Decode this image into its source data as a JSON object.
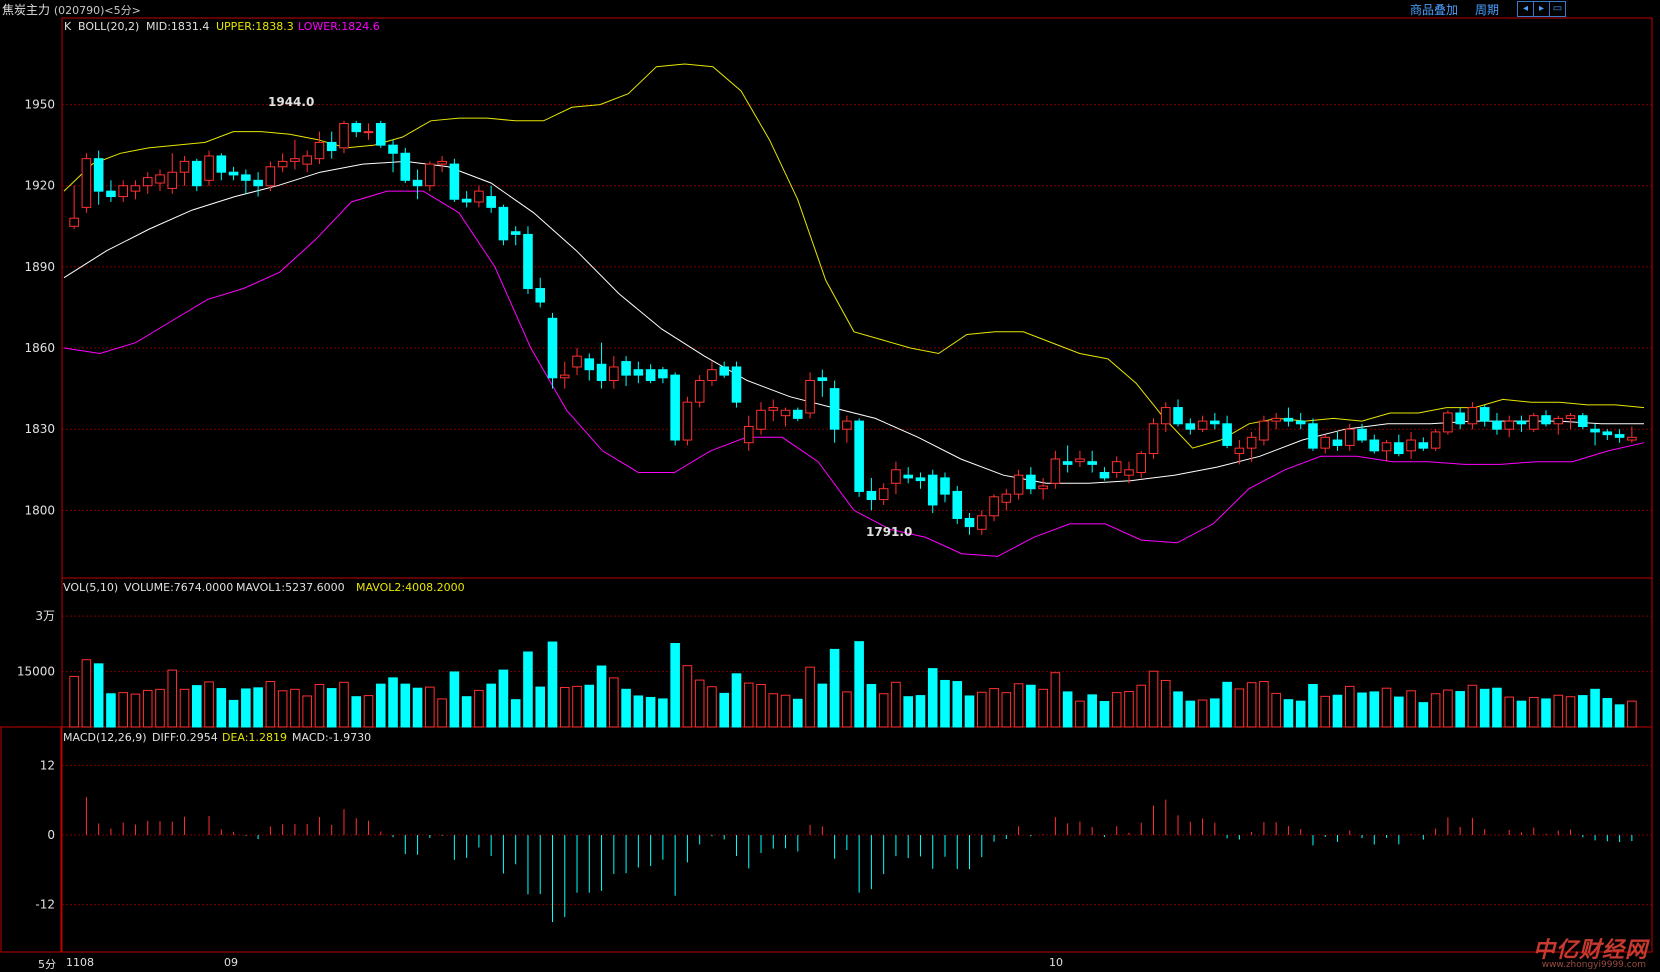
{
  "header": {
    "title": "焦炭主力",
    "code": "(020790)<5分>",
    "btn_overlay": "商品叠加",
    "btn_period": "周期",
    "nav_icons": [
      "arrow-left-icon",
      "arrow-right-icon",
      "restore-icon"
    ]
  },
  "colors": {
    "up": "#ff3030",
    "down": "#00ffff",
    "mid": "#ffffff",
    "upper": "#e6e600",
    "lower": "#ff00ff",
    "grid": "#7a0000"
  },
  "footer": {
    "period": "5分",
    "date1": "1108",
    "date2": "09",
    "date3": "10"
  },
  "watermark": "中亿财经网",
  "watermark_url": "www.zhongyi9999.com",
  "chart_data": [
    {
      "type": "candlestick",
      "legend": {
        "k": "K",
        "name": "BOLL(20,2)",
        "mid": "MID:1831.4",
        "upper": "UPPER:1838.3",
        "lower": "LOWER:1824.6"
      },
      "yticks": [
        1800,
        1830,
        1860,
        1890,
        1920,
        1950
      ],
      "ylim": [
        1775,
        1982
      ],
      "max_label": "1944.0",
      "min_label": "1791.0",
      "ohlc": [
        [
          1905,
          1920,
          1904,
          1908
        ],
        [
          1912,
          1932,
          1910,
          1930
        ],
        [
          1930,
          1933,
          1913,
          1918
        ],
        [
          1918,
          1922,
          1914,
          1916
        ],
        [
          1916,
          1922,
          1914,
          1920
        ],
        [
          1918,
          1922,
          1915,
          1920
        ],
        [
          1920,
          1925,
          1917,
          1923
        ],
        [
          1921,
          1926,
          1918,
          1924
        ],
        [
          1919,
          1932,
          1917,
          1925
        ],
        [
          1925,
          1931,
          1920,
          1929
        ],
        [
          1929,
          1930,
          1918,
          1920
        ],
        [
          1922,
          1933,
          1920,
          1931
        ],
        [
          1931,
          1932,
          1922,
          1925
        ],
        [
          1925,
          1927,
          1922,
          1924
        ],
        [
          1924,
          1926,
          1917,
          1922
        ],
        [
          1922,
          1925,
          1916,
          1920
        ],
        [
          1920,
          1929,
          1918,
          1927
        ],
        [
          1927,
          1932,
          1925,
          1929
        ],
        [
          1929,
          1937,
          1926,
          1930
        ],
        [
          1928,
          1933,
          1925,
          1931
        ],
        [
          1930,
          1940,
          1928,
          1936
        ],
        [
          1936,
          1940,
          1930,
          1933
        ],
        [
          1934,
          1944,
          1932,
          1943
        ],
        [
          1943,
          1944,
          1938,
          1940
        ],
        [
          1940,
          1943,
          1937,
          1940
        ],
        [
          1943,
          1944,
          1934,
          1935
        ],
        [
          1935,
          1937,
          1925,
          1932
        ],
        [
          1932,
          1934,
          1921,
          1922
        ],
        [
          1922,
          1926,
          1915,
          1920
        ],
        [
          1920,
          1929,
          1918,
          1928
        ],
        [
          1928,
          1931,
          1925,
          1929
        ],
        [
          1928,
          1930,
          1914,
          1915
        ],
        [
          1915,
          1918,
          1912,
          1914
        ],
        [
          1914,
          1920,
          1912,
          1918
        ],
        [
          1916,
          1920,
          1910,
          1912
        ],
        [
          1912,
          1913,
          1898,
          1900
        ],
        [
          1903,
          1905,
          1898,
          1902
        ],
        [
          1902,
          1905,
          1880,
          1882
        ],
        [
          1882,
          1886,
          1875,
          1877
        ],
        [
          1871,
          1873,
          1845,
          1849
        ],
        [
          1849,
          1855,
          1845,
          1850
        ],
        [
          1853,
          1860,
          1850,
          1857
        ],
        [
          1856,
          1858,
          1848,
          1852
        ],
        [
          1854,
          1862,
          1845,
          1848
        ],
        [
          1848,
          1857,
          1845,
          1853
        ],
        [
          1855,
          1857,
          1846,
          1850
        ],
        [
          1852,
          1855,
          1847,
          1850
        ],
        [
          1852,
          1854,
          1847,
          1848
        ],
        [
          1852,
          1853,
          1847,
          1849
        ],
        [
          1850,
          1851,
          1824,
          1826
        ],
        [
          1826,
          1842,
          1824,
          1840
        ],
        [
          1840,
          1850,
          1838,
          1848
        ],
        [
          1848,
          1855,
          1846,
          1852
        ],
        [
          1853,
          1855,
          1849,
          1850
        ],
        [
          1853,
          1855,
          1838,
          1840
        ],
        [
          1825,
          1835,
          1822,
          1831
        ],
        [
          1830,
          1840,
          1828,
          1837
        ],
        [
          1837,
          1841,
          1833,
          1838
        ],
        [
          1835,
          1838,
          1831,
          1837
        ],
        [
          1837,
          1838,
          1833,
          1834
        ],
        [
          1836,
          1851,
          1834,
          1848
        ],
        [
          1849,
          1852,
          1842,
          1848
        ],
        [
          1845,
          1848,
          1825,
          1830
        ],
        [
          1830,
          1835,
          1825,
          1833
        ],
        [
          1833,
          1834,
          1805,
          1807
        ],
        [
          1807,
          1812,
          1800,
          1804
        ],
        [
          1804,
          1810,
          1802,
          1808
        ],
        [
          1810,
          1818,
          1806,
          1815
        ],
        [
          1813,
          1816,
          1810,
          1812
        ],
        [
          1812,
          1814,
          1808,
          1811
        ],
        [
          1813,
          1815,
          1799,
          1802
        ],
        [
          1812,
          1814,
          1803,
          1806
        ],
        [
          1807,
          1809,
          1795,
          1797
        ],
        [
          1797,
          1799,
          1791,
          1794
        ],
        [
          1793,
          1800,
          1791,
          1798
        ],
        [
          1798,
          1806,
          1796,
          1805
        ],
        [
          1803,
          1808,
          1800,
          1806
        ],
        [
          1806,
          1815,
          1804,
          1813
        ],
        [
          1813,
          1816,
          1806,
          1808
        ],
        [
          1808,
          1812,
          1804,
          1809
        ],
        [
          1810,
          1822,
          1808,
          1819
        ],
        [
          1818,
          1824,
          1814,
          1817
        ],
        [
          1818,
          1822,
          1816,
          1819
        ],
        [
          1818,
          1822,
          1814,
          1817
        ],
        [
          1814,
          1816,
          1811,
          1812
        ],
        [
          1814,
          1820,
          1812,
          1818
        ],
        [
          1813,
          1818,
          1810,
          1815
        ],
        [
          1814,
          1822,
          1812,
          1821
        ],
        [
          1821,
          1834,
          1819,
          1832
        ],
        [
          1832,
          1840,
          1829,
          1838
        ],
        [
          1838,
          1841,
          1831,
          1832
        ],
        [
          1832,
          1834,
          1828,
          1830
        ],
        [
          1830,
          1835,
          1829,
          1833
        ],
        [
          1833,
          1836,
          1830,
          1832
        ],
        [
          1832,
          1835,
          1823,
          1824
        ],
        [
          1821,
          1826,
          1817,
          1823
        ],
        [
          1823,
          1829,
          1818,
          1827
        ],
        [
          1826,
          1835,
          1824,
          1833
        ],
        [
          1833,
          1836,
          1830,
          1834
        ],
        [
          1834,
          1838,
          1831,
          1833
        ],
        [
          1833,
          1836,
          1830,
          1832
        ],
        [
          1832,
          1834,
          1822,
          1823
        ],
        [
          1823,
          1828,
          1821,
          1827
        ],
        [
          1826,
          1829,
          1822,
          1824
        ],
        [
          1824,
          1832,
          1822,
          1830
        ],
        [
          1830,
          1832,
          1825,
          1826
        ],
        [
          1826,
          1828,
          1821,
          1822
        ],
        [
          1822,
          1826,
          1818,
          1825
        ],
        [
          1825,
          1828,
          1820,
          1821
        ],
        [
          1822,
          1829,
          1819,
          1826
        ],
        [
          1825,
          1827,
          1822,
          1823
        ],
        [
          1823,
          1830,
          1822,
          1829
        ],
        [
          1829,
          1837,
          1828,
          1836
        ],
        [
          1836,
          1838,
          1830,
          1832
        ],
        [
          1832,
          1840,
          1830,
          1838
        ],
        [
          1838,
          1839,
          1831,
          1833
        ],
        [
          1833,
          1836,
          1828,
          1830
        ],
        [
          1830,
          1835,
          1827,
          1833
        ],
        [
          1833,
          1835,
          1829,
          1832
        ],
        [
          1830,
          1836,
          1829,
          1835
        ],
        [
          1835,
          1837,
          1831,
          1832
        ],
        [
          1832,
          1835,
          1828,
          1834
        ],
        [
          1834,
          1836,
          1830,
          1835
        ],
        [
          1835,
          1836,
          1830,
          1831
        ],
        [
          1830,
          1832,
          1824,
          1829
        ],
        [
          1829,
          1830,
          1826,
          1828
        ],
        [
          1828,
          1830,
          1825,
          1827
        ],
        [
          1826,
          1831,
          1825,
          1827
        ]
      ],
      "boll_upper": [
        1918,
        1928,
        1932,
        1934,
        1935,
        1936,
        1940,
        1940,
        1939,
        1937,
        1934,
        1935,
        1938,
        1944,
        1945,
        1945,
        1944,
        1944,
        1949,
        1950,
        1954,
        1964,
        1965,
        1964,
        1955,
        1937,
        1915,
        1885,
        1866,
        1863,
        1860,
        1858,
        1865,
        1866,
        1866,
        1862,
        1858,
        1856,
        1847,
        1834,
        1823,
        1826,
        1832,
        1834,
        1833,
        1834,
        1833,
        1836,
        1836,
        1838,
        1838,
        1841,
        1840,
        1840,
        1839,
        1839,
        1838
      ],
      "boll_mid": [
        1886,
        1896,
        1904,
        1911,
        1916,
        1920,
        1925,
        1928,
        1929,
        1927,
        1921,
        1910,
        1896,
        1880,
        1867,
        1857,
        1848,
        1842,
        1838,
        1834,
        1827,
        1819,
        1813,
        1810,
        1810,
        1811,
        1813,
        1816,
        1820,
        1826,
        1830,
        1832,
        1832,
        1833,
        1833,
        1833,
        1832,
        1832
      ],
      "boll_lower": [
        1860,
        1858,
        1862,
        1870,
        1878,
        1882,
        1888,
        1900,
        1914,
        1918,
        1918,
        1910,
        1890,
        1860,
        1837,
        1822,
        1814,
        1814,
        1822,
        1827,
        1827,
        1818,
        1800,
        1793,
        1790,
        1784,
        1783,
        1790,
        1795,
        1795,
        1789,
        1788,
        1795,
        1808,
        1815,
        1820,
        1820,
        1818,
        1818,
        1817,
        1817,
        1818,
        1818,
        1822,
        1825
      ],
      "vol_legend": {
        "name": "VOL(5,10)",
        "volume": "VOLUME:7674.0000",
        "mavol1": "MAVOL1:5237.6000",
        "mavol2": "MAVOL2:4008.2000"
      },
      "vol_ticks": [
        "15000",
        "3万"
      ],
      "macd_legend": {
        "name": "MACD(12,26,9)",
        "diff": "DIFF:0.2954",
        "dea": "DEA:1.2819",
        "macd": "MACD:-1.9730"
      },
      "macd_ticks": [
        12,
        0,
        -12
      ]
    }
  ]
}
